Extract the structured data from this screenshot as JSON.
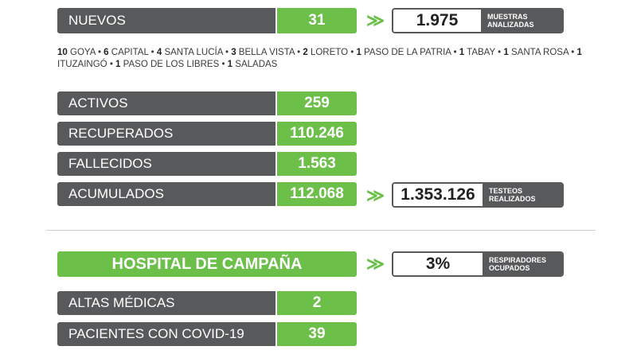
{
  "nuevos": {
    "label": "NUEVOS",
    "value": "31"
  },
  "muestras": {
    "value": "1.975",
    "caption_line1": "MUESTRAS",
    "caption_line2": "ANALIZADAS"
  },
  "towns": [
    {
      "count": "10",
      "name": "GOYA"
    },
    {
      "count": "6",
      "name": "CAPITAL"
    },
    {
      "count": "4",
      "name": "SANTA LUCÍA"
    },
    {
      "count": "3",
      "name": "BELLA VISTA"
    },
    {
      "count": "2",
      "name": "LORETO"
    },
    {
      "count": "1",
      "name": "PASO DE LA PATRIA"
    },
    {
      "count": "1",
      "name": "TABAY"
    },
    {
      "count": "1",
      "name": "SANTA ROSA"
    },
    {
      "count": "1",
      "name": "ITUZAINGÓ"
    },
    {
      "count": "1",
      "name": "PASO DE LOS LIBRES"
    },
    {
      "count": "1",
      "name": "SALADAS"
    }
  ],
  "stats": [
    {
      "label": "ACTIVOS",
      "value": "259"
    },
    {
      "label": "RECUPERADOS",
      "value": "110.246"
    },
    {
      "label": "FALLECIDOS",
      "value": "1.563"
    },
    {
      "label": "ACUMULADOS",
      "value": "112.068"
    }
  ],
  "testeos": {
    "value": "1.353.126",
    "caption_line1": "TESTEOS",
    "caption_line2": "REALIZADOS"
  },
  "hospital": {
    "title": "HOSPITAL DE CAMPAÑA"
  },
  "respiradores": {
    "value": "3%",
    "caption_line1": "RESPIRADORES",
    "caption_line2": "OCUPADOS"
  },
  "hosp_stats": [
    {
      "label": "ALTAS MÉDICAS",
      "value": "2"
    },
    {
      "label": "PACIENTES CON COVID-19",
      "value": "39"
    }
  ],
  "arrow_glyph": "≫",
  "colors": {
    "gray": "#58595b",
    "green": "#6cc04a"
  }
}
